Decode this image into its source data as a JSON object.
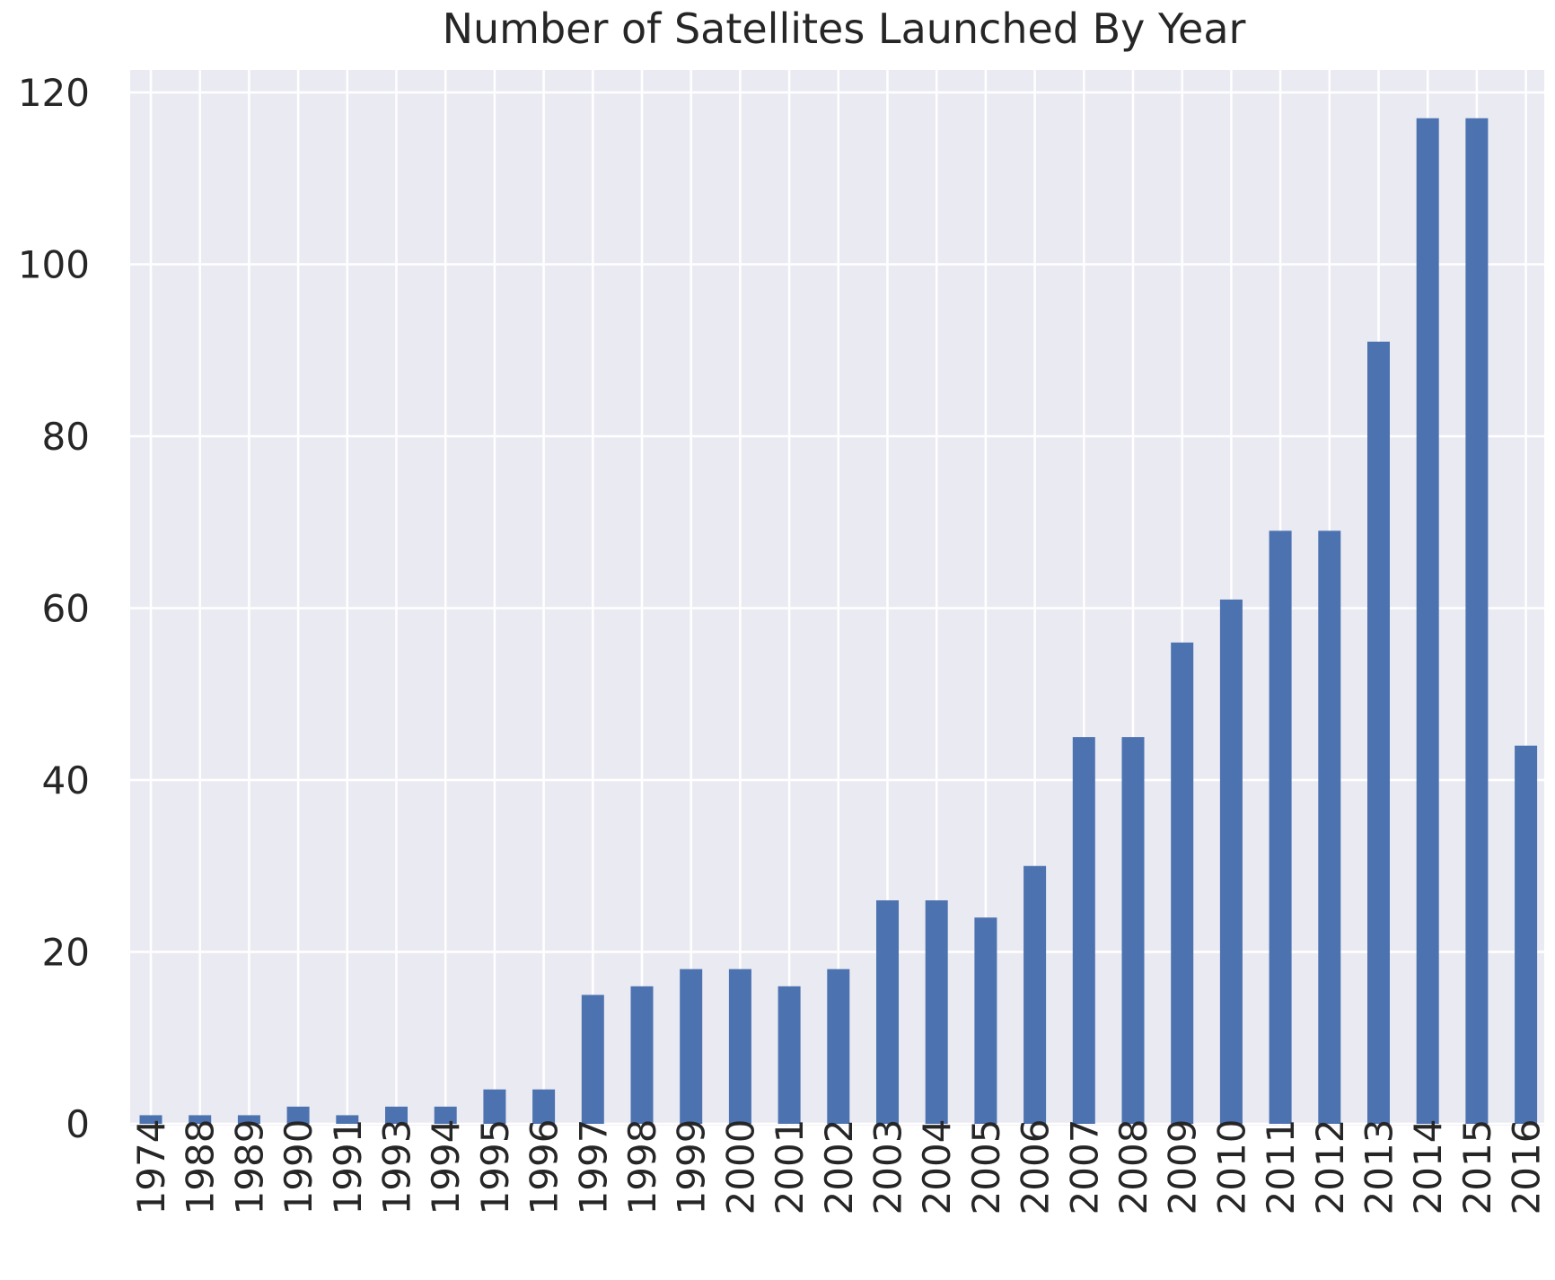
{
  "chart_data": {
    "type": "bar",
    "title": "Number of Satellites Launched By Year",
    "xlabel": "",
    "ylabel": "",
    "categories": [
      "1974",
      "1988",
      "1989",
      "1990",
      "1991",
      "1993",
      "1994",
      "1995",
      "1996",
      "1997",
      "1998",
      "1999",
      "2000",
      "2001",
      "2002",
      "2003",
      "2004",
      "2005",
      "2006",
      "2007",
      "2008",
      "2009",
      "2010",
      "2011",
      "2012",
      "2013",
      "2014",
      "2015",
      "2016"
    ],
    "values": [
      1,
      1,
      1,
      2,
      1,
      2,
      2,
      4,
      4,
      15,
      16,
      18,
      18,
      16,
      18,
      26,
      26,
      24,
      30,
      45,
      45,
      56,
      61,
      69,
      69,
      91,
      117,
      117,
      44
    ],
    "ylim": [
      0,
      120
    ],
    "yticks": [
      0,
      20,
      40,
      60,
      80,
      100,
      120
    ],
    "grid": true,
    "bar_color": "#4c72b0",
    "background_color": "#eaeaf2"
  }
}
